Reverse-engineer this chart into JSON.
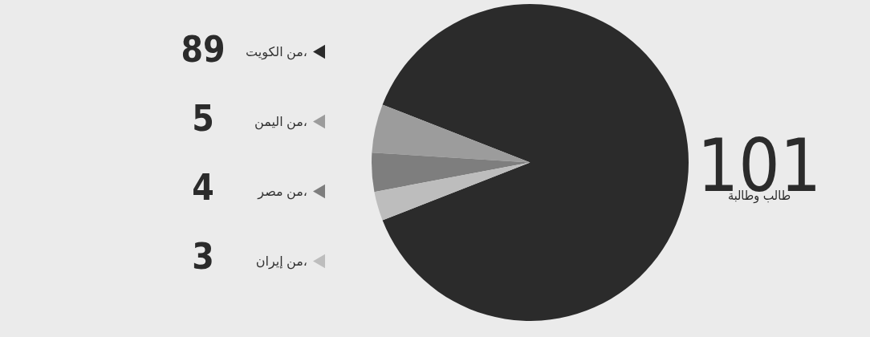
{
  "chart_data": {
    "type": "pie",
    "categories": [
      "من الكويت،",
      "من اليمن،",
      "من مصر،",
      "من إيران،"
    ],
    "values": [
      89,
      5,
      4,
      3
    ],
    "colors": [
      "#2b2b2b",
      "#9c9c9c",
      "#7e7e7e",
      "#bdbdbd"
    ],
    "data_labels": true,
    "legend": "left",
    "annotations": [
      "101",
      "طالب وطالبة"
    ]
  }
}
